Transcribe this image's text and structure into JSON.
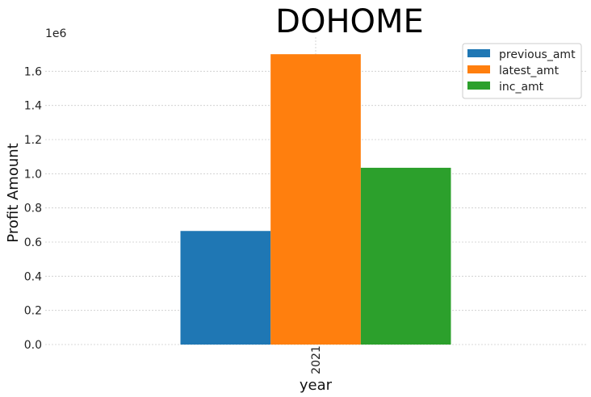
{
  "chart_data": {
    "type": "bar",
    "title": "DOHOME",
    "xlabel": "year",
    "ylabel": "Profit Amount",
    "y_offset_label": "1e6",
    "categories": [
      "2021"
    ],
    "ylim": [
      0,
      1.8
    ],
    "yticks": [
      "0.0",
      "0.2",
      "0.4",
      "0.6",
      "0.8",
      "1.0",
      "1.2",
      "1.4",
      "1.6"
    ],
    "grid": true,
    "legend_position": "top-right",
    "series": [
      {
        "name": "previous_amt",
        "color": "#1f77b4",
        "values": [
          0.665
        ]
      },
      {
        "name": "latest_amt",
        "color": "#ff7f0e",
        "values": [
          1.7
        ]
      },
      {
        "name": "inc_amt",
        "color": "#2ca02c",
        "values": [
          1.035
        ]
      }
    ]
  }
}
